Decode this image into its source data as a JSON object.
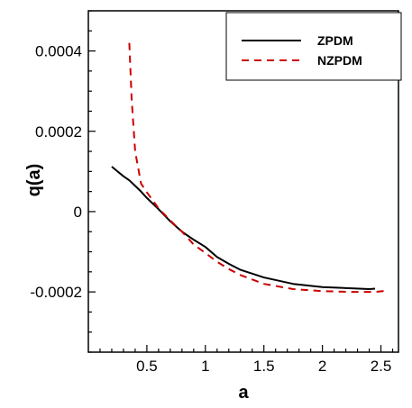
{
  "chart_data": {
    "type": "line",
    "title": "",
    "xlabel": "a",
    "ylabel": "q(a)",
    "xlim": [
      0.0,
      2.65
    ],
    "ylim": [
      -0.00035,
      0.0005
    ],
    "x_ticks": [
      0.5,
      1,
      1.5,
      2,
      2.5
    ],
    "x_tick_labels": [
      "0.5",
      "1",
      "1.5",
      "2",
      "2.5"
    ],
    "y_ticks": [
      0.0004,
      0.0002,
      0,
      -0.0002
    ],
    "y_tick_labels": [
      "0.0004",
      "0.0002",
      "0",
      "-0.0002"
    ],
    "grid": false,
    "legend_position": "top-right",
    "series": [
      {
        "name": "ZPDM",
        "color": "#000000",
        "style": "solid",
        "x": [
          0.2,
          0.25,
          0.3,
          0.35,
          0.4,
          0.45,
          0.5,
          0.55,
          0.6,
          0.7,
          0.8,
          0.9,
          1.0,
          1.1,
          1.2,
          1.3,
          1.5,
          1.75,
          2.0,
          2.25,
          2.4,
          2.45
        ],
        "y": [
          0.000112,
          0.0001,
          8.8e-05,
          7.8e-05,
          6.4e-05,
          5e-05,
          3.4e-05,
          2e-05,
          6e-06,
          -2.4e-05,
          -5e-05,
          -7e-05,
          -8.8e-05,
          -0.000113,
          -0.00013,
          -0.000145,
          -0.000164,
          -0.00018,
          -0.000188,
          -0.000191,
          -0.000193,
          -0.000192
        ]
      },
      {
        "name": "NZPDM",
        "color": "#cc0000",
        "style": "dashed",
        "x": [
          0.35,
          0.37,
          0.4,
          0.45,
          0.5,
          0.55,
          0.6,
          0.7,
          0.8,
          0.9,
          1.0,
          1.1,
          1.2,
          1.3,
          1.5,
          1.75,
          2.0,
          2.25,
          2.45,
          2.55
        ],
        "y": [
          0.00042,
          0.00028,
          0.00015,
          7e-05,
          4.8e-05,
          2.8e-05,
          8e-06,
          -2.2e-05,
          -5e-05,
          -8.2e-05,
          -0.000103,
          -0.000125,
          -0.000143,
          -0.000158,
          -0.00018,
          -0.000193,
          -0.000198,
          -0.0002,
          -0.0002,
          -0.000197
        ]
      }
    ]
  }
}
